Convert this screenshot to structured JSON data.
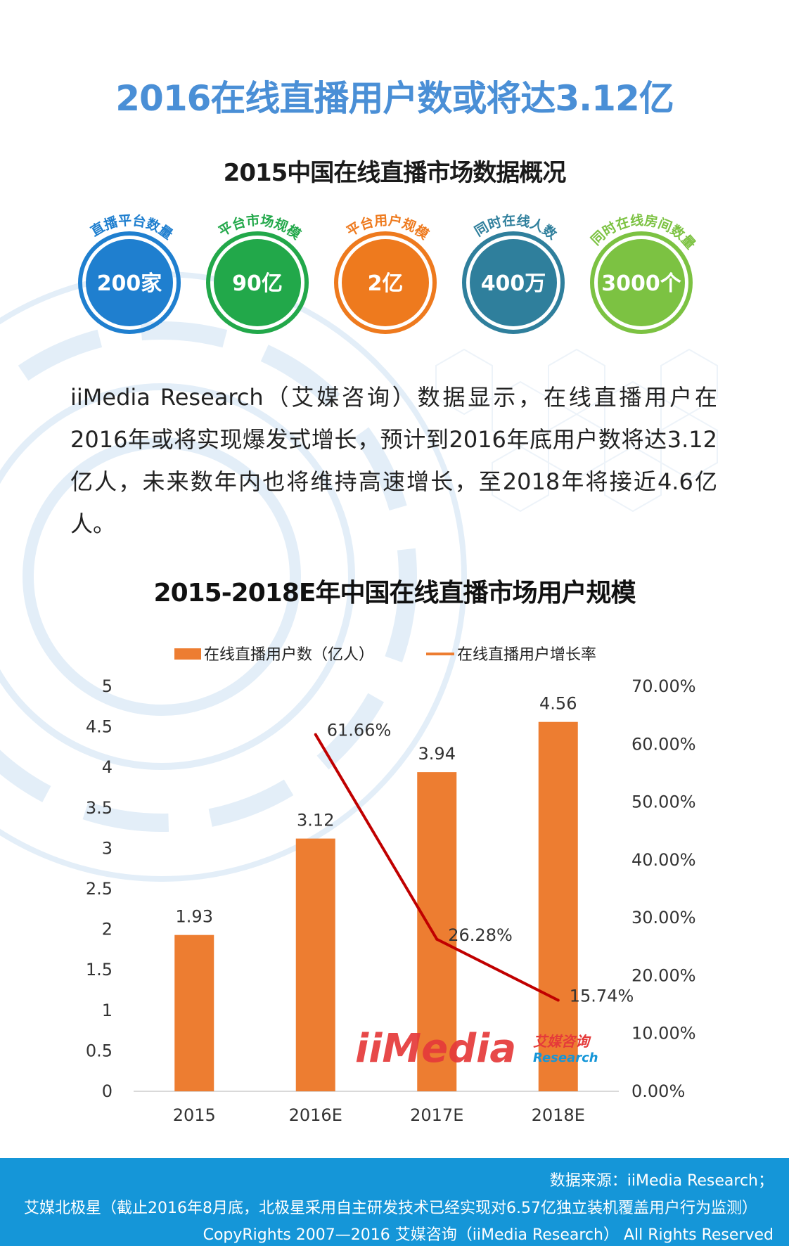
{
  "title": "2016在线直播用户数或将达3.12亿",
  "subtitle": "2015中国在线直播市场数据概况",
  "stats": [
    {
      "label": "直播平台数量",
      "value": "200家",
      "color": "#1f7fcf"
    },
    {
      "label": "平台市场规模",
      "value": "90亿",
      "color": "#22a84a"
    },
    {
      "label": "平台用户规模",
      "value": "2亿",
      "color": "#ee7a1e"
    },
    {
      "label": "同时在线人数",
      "value": "400万",
      "color": "#2f7f9c"
    },
    {
      "label": "同时在线房间数量",
      "value": "3000个",
      "color": "#7cc242"
    }
  ],
  "paragraph": "iiMedia Research（艾媒咨询）数据显示，在线直播用户在2016年或将实现爆发式增长，预计到2016年底用户数将达3.12亿人，未来数年内也将维持高速增长，至2018年将接近4.6亿人。",
  "chart_title": "2015-2018E年中国在线直播市场用户规模",
  "chart_data": {
    "type": "bar",
    "categories": [
      "2015",
      "2016E",
      "2017E",
      "2018E"
    ],
    "series": [
      {
        "name": "在线直播用户数（亿人）",
        "type": "bar",
        "axis": "left",
        "color": "#ed7d31",
        "values": [
          1.93,
          3.12,
          3.94,
          4.56
        ],
        "labels": [
          "1.93",
          "3.12",
          "3.94",
          "4.56"
        ]
      },
      {
        "name": "在线直播用户增长率",
        "type": "line",
        "axis": "right",
        "color": "#c00000",
        "values": [
          null,
          61.66,
          26.28,
          15.74
        ],
        "labels": [
          "",
          "61.66%",
          "26.28%",
          "15.74%"
        ]
      }
    ],
    "ylim": [
      0,
      5
    ],
    "yticks": [
      "0",
      "0.5",
      "1",
      "1.5",
      "2",
      "2.5",
      "3",
      "3.5",
      "4",
      "4.5",
      "5"
    ],
    "y2lim": [
      0,
      70
    ],
    "y2ticks": [
      "0.00%",
      "10.00%",
      "20.00%",
      "30.00%",
      "40.00%",
      "50.00%",
      "60.00%",
      "70.00%"
    ],
    "legend": "top",
    "grid": false
  },
  "watermark": {
    "brand": "iiMedia",
    "cn": "艾媒咨询",
    "en": "Research"
  },
  "footer": {
    "source": "数据来源：iiMedia Research；",
    "note": "艾媒北极星（截止2016年8月底，北极星采用自主研发技术已经实现对6.57亿独立装机覆盖用户行为监测）",
    "copyright": "CopyRights 2007—2016 艾媒咨询（iiMedia Research） All Rights Reserved"
  }
}
